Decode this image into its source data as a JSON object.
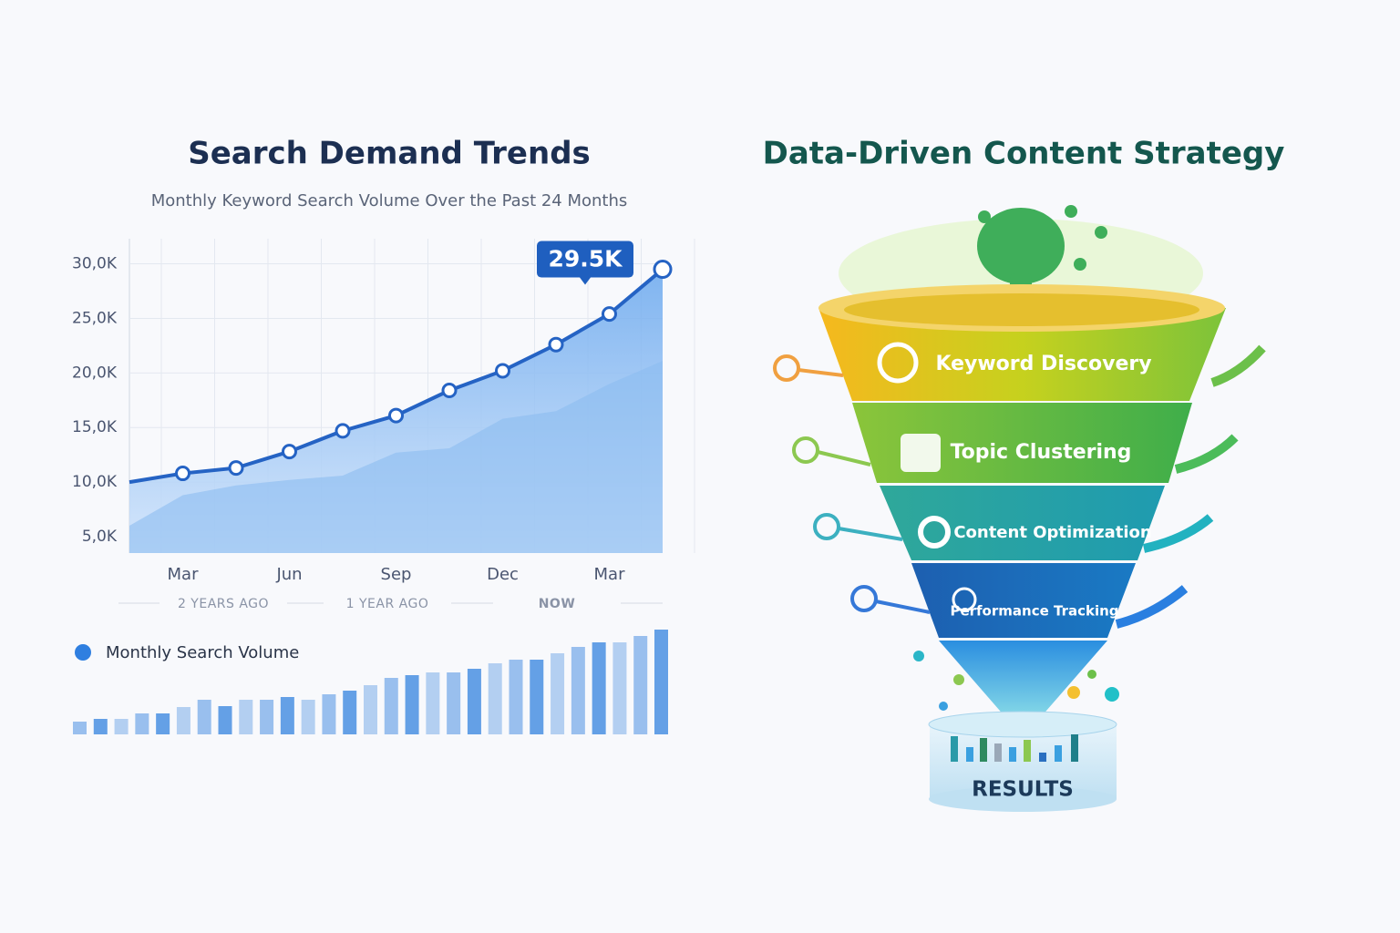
{
  "chart_data": [
    {
      "type": "line",
      "title": "Search Demand Trends",
      "subtitle": "Monthly Keyword Search Volume Over the Past 24 Months",
      "categories": [
        null,
        "Mar",
        null,
        "Jun",
        null,
        "Sep",
        null,
        "Dec",
        null,
        "Mar",
        null
      ],
      "series": [
        {
          "name": "Monthly Search Volume",
          "color": "#2563c4",
          "values": [
            10000,
            10800,
            11300,
            12800,
            14700,
            16100,
            18400,
            20200,
            22600,
            25400,
            29500
          ],
          "value_labels": [
            null,
            null,
            null,
            null,
            null,
            null,
            null,
            null,
            null,
            null,
            "29.5K"
          ]
        },
        {
          "color": "#8cbdf0",
          "values": [
            6000,
            8800,
            9700,
            10200,
            10600,
            12700,
            13100,
            15800,
            16500,
            19000,
            21100
          ]
        }
      ],
      "ylim": [
        3500,
        32300
      ],
      "yticks": [
        {
          "value": 5000,
          "label": "5,0K"
        },
        {
          "value": 10000,
          "label": "10,0K"
        },
        {
          "value": 15000,
          "label": "15,0K"
        },
        {
          "value": 20000,
          "label": "20,0K"
        },
        {
          "value": 25000,
          "label": "25,0K"
        },
        {
          "value": 30000,
          "label": "30,0K"
        }
      ],
      "grid": true,
      "annotations": [
        "2 YEARS AGO",
        "1 YEAR AGO",
        "NOW"
      ]
    },
    {
      "type": "bar",
      "color": "#4a90e2",
      "values": [
        14,
        17,
        17,
        23,
        23,
        30,
        38,
        31,
        38,
        38,
        41,
        38,
        44,
        48,
        54,
        62,
        65,
        68,
        68,
        72,
        78,
        82,
        82,
        89,
        96,
        101,
        101,
        108,
        115
      ]
    }
  ],
  "funnel": {
    "title": "Data-Driven Content Strategy",
    "stages": [
      "Keyword Discovery",
      "Topic Clustering",
      "Content Optimization",
      "Performance Tracking"
    ],
    "result": "RESULTS"
  }
}
